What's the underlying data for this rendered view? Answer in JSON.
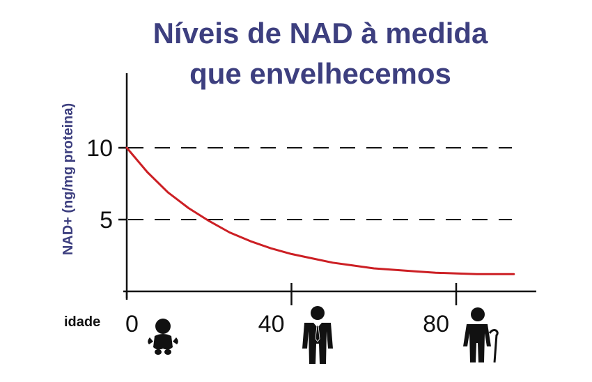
{
  "chart_data": {
    "type": "line",
    "title": [
      "Níveis de NAD à medida",
      "que envelhecemos"
    ],
    "ylabel": "NAD+ (ng/mg proteina)",
    "x_prefix_label": "idade",
    "x_ticks": [
      0,
      40,
      80
    ],
    "y_ticks": [
      10,
      5
    ],
    "xlim": [
      0,
      100
    ],
    "ylim": [
      -0.2,
      15
    ],
    "grid": "dashed horizontal at y ticks",
    "colors": {
      "title": "#3d3f7f",
      "line": "#cc1f24",
      "axis": "#111111"
    },
    "icons": [
      "baby-icon",
      "businessman-icon",
      "elderly-man-with-cane-icon"
    ],
    "series": [
      {
        "x": [
          0,
          5,
          10,
          15,
          20,
          25,
          30,
          35,
          40,
          45,
          50,
          55,
          60,
          65,
          70,
          75,
          80,
          85,
          90,
          94
        ],
        "values": [
          10,
          8.3,
          6.9,
          5.8,
          4.9,
          4.1,
          3.5,
          3.0,
          2.6,
          2.3,
          2.0,
          1.8,
          1.6,
          1.5,
          1.4,
          1.3,
          1.25,
          1.2,
          1.2,
          1.2
        ]
      }
    ]
  }
}
